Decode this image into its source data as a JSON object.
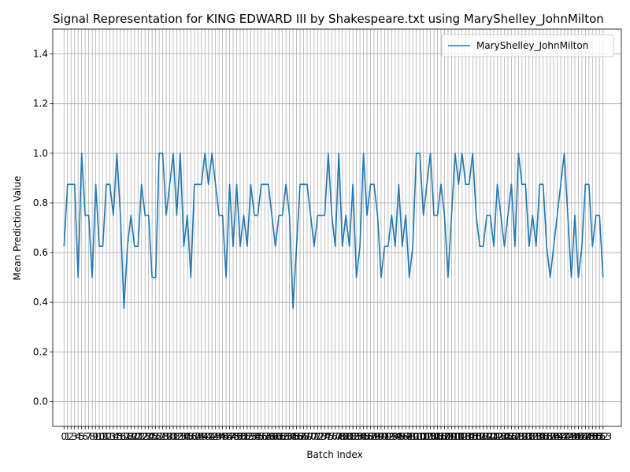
{
  "chart_data": {
    "type": "line",
    "title": "Signal Representation for KING EDWARD III by Shakespeare.txt using MaryShelley_JohnMilton",
    "xlabel": "Batch Index",
    "ylabel": "Mean Prediction Value",
    "xlim": [
      -3.2,
      158.2
    ],
    "ylim": [
      -0.1,
      1.5
    ],
    "yticks": [
      0.0,
      0.2,
      0.4,
      0.6,
      0.8,
      1.0,
      1.2,
      1.4
    ],
    "ytick_labels": [
      "0.0",
      "0.2",
      "0.4",
      "0.6",
      "0.8",
      "1.0",
      "1.2",
      "1.4"
    ],
    "grid": true,
    "legend_position": "upper right",
    "series": [
      {
        "name": "MaryShelley_JohnMilton",
        "color": "#1f77b4",
        "x_start": 0,
        "values": [
          0.625,
          0.875,
          0.875,
          0.875,
          0.5,
          1.0,
          0.75,
          0.75,
          0.5,
          0.875,
          0.625,
          0.625,
          0.875,
          0.875,
          0.75,
          1.0,
          0.75,
          0.375,
          0.625,
          0.75,
          0.625,
          0.625,
          0.875,
          0.75,
          0.75,
          0.5,
          0.5,
          1.0,
          1.0,
          0.75,
          0.875,
          1.0,
          0.75,
          1.0,
          0.625,
          0.75,
          0.5,
          0.875,
          0.875,
          0.875,
          1.0,
          0.875,
          1.0,
          0.875,
          0.75,
          0.75,
          0.5,
          0.875,
          0.625,
          0.875,
          0.625,
          0.75,
          0.625,
          0.875,
          0.75,
          0.75,
          0.875,
          0.875,
          0.875,
          0.75,
          0.625,
          0.75,
          0.75,
          0.875,
          0.75,
          0.375,
          0.625,
          0.875,
          0.875,
          0.875,
          0.75,
          0.625,
          0.75,
          0.75,
          0.75,
          1.0,
          0.75,
          0.625,
          1.0,
          0.625,
          0.75,
          0.625,
          0.875,
          0.5,
          0.625,
          1.0,
          0.75,
          0.875,
          0.875,
          0.75,
          0.5,
          0.625,
          0.625,
          0.75,
          0.625,
          0.875,
          0.625,
          0.75,
          0.5,
          0.625,
          1.0,
          1.0,
          0.75,
          0.875,
          1.0,
          0.75,
          0.75,
          0.875,
          0.75,
          0.5,
          0.75,
          1.0,
          0.875,
          1.0,
          0.875,
          0.875,
          1.0,
          0.75,
          0.625,
          0.625,
          0.75,
          0.75,
          0.625,
          0.875,
          0.75,
          0.625,
          0.75,
          0.875,
          0.625,
          1.0,
          0.875,
          0.875,
          0.625,
          0.75,
          0.625,
          0.875,
          0.875,
          0.625,
          0.5,
          0.625,
          0.75,
          0.875,
          1.0,
          0.75,
          0.5,
          0.75,
          0.5,
          0.625,
          0.875,
          0.875,
          0.625,
          0.75,
          0.75,
          0.5
        ]
      }
    ]
  }
}
